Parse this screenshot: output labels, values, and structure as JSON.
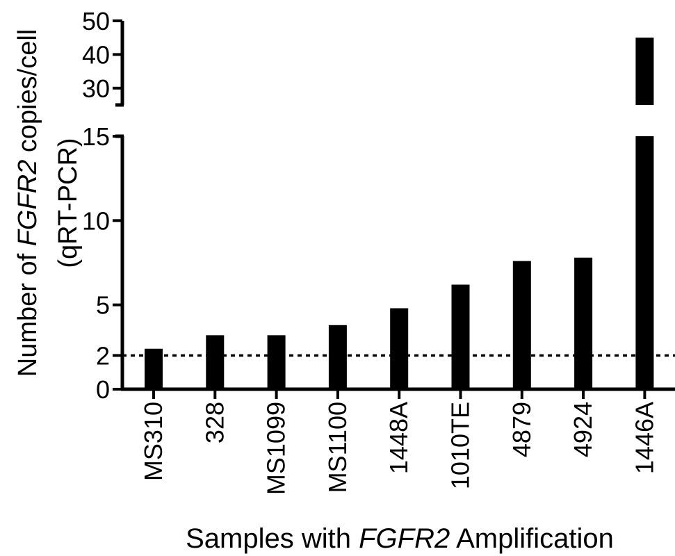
{
  "chart_data": {
    "type": "bar",
    "categories": [
      "MS310",
      "328",
      "MS1099",
      "MS1100",
      "1448A",
      "1010TE",
      "4879",
      "4924",
      "1446A"
    ],
    "values": [
      2.4,
      3.2,
      3.2,
      3.8,
      4.8,
      6.2,
      7.6,
      7.8,
      45
    ],
    "ylabel_parts": [
      "Number of ",
      "FGFR2",
      " copies/cell"
    ],
    "ylabel_line2": "(qRT-PCR)",
    "xlabel_parts": [
      "Samples with ",
      "FGFR2",
      " Amplification"
    ],
    "y_axis_break": {
      "lower_segment": [
        0,
        15
      ],
      "upper_segment": [
        25,
        50
      ]
    },
    "lower_ticks": [
      {
        "value": 0,
        "label": "0"
      },
      {
        "value": 2,
        "label": "2"
      },
      {
        "value": 5,
        "label": "5"
      },
      {
        "value": 10,
        "label": "10"
      },
      {
        "value": 15,
        "label": "15"
      }
    ],
    "upper_ticks": [
      {
        "value": 30,
        "label": "30"
      },
      {
        "value": 40,
        "label": "40"
      },
      {
        "value": 50,
        "label": "50"
      }
    ],
    "reference_line": {
      "value": 2,
      "style": "dotted"
    },
    "grid": false,
    "bar_color": "#000000"
  }
}
